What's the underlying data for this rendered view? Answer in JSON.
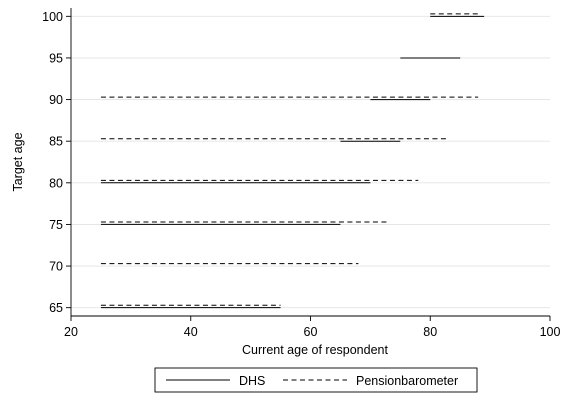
{
  "chart_data": {
    "type": "line",
    "xlabel": "Current age of respondent",
    "ylabel": "Target age",
    "xlim": [
      20,
      100
    ],
    "ylim": [
      64,
      101
    ],
    "x_ticks": [
      20,
      40,
      60,
      80,
      100
    ],
    "y_ticks": [
      65,
      70,
      75,
      80,
      85,
      90,
      95,
      100
    ],
    "grid": "horizontal",
    "legend_position": "bottom",
    "series": [
      {
        "name": "DHS",
        "style": "solid",
        "segments": [
          {
            "target_age": 65,
            "x": [
              25,
              55
            ]
          },
          {
            "target_age": 75,
            "x": [
              25,
              65
            ]
          },
          {
            "target_age": 80,
            "x": [
              25,
              70
            ]
          },
          {
            "target_age": 85,
            "x": [
              65,
              75
            ]
          },
          {
            "target_age": 90,
            "x": [
              70,
              80
            ]
          },
          {
            "target_age": 95,
            "x": [
              75,
              85
            ]
          },
          {
            "target_age": 100,
            "x": [
              80,
              89
            ]
          }
        ]
      },
      {
        "name": "Pensionbarometer",
        "style": "dashed",
        "segments": [
          {
            "target_age": 65,
            "x": [
              25,
              55
            ]
          },
          {
            "target_age": 70,
            "x": [
              25,
              68
            ]
          },
          {
            "target_age": 75,
            "x": [
              25,
              73
            ]
          },
          {
            "target_age": 80,
            "x": [
              25,
              78
            ]
          },
          {
            "target_age": 85,
            "x": [
              25,
              83
            ]
          },
          {
            "target_age": 90,
            "x": [
              25,
              88
            ]
          },
          {
            "target_age": 100,
            "x": [
              80,
              88
            ]
          }
        ]
      }
    ]
  },
  "colors": {
    "line": "#000000",
    "grid": "#e3e3e3",
    "legend_border": "#000000"
  }
}
